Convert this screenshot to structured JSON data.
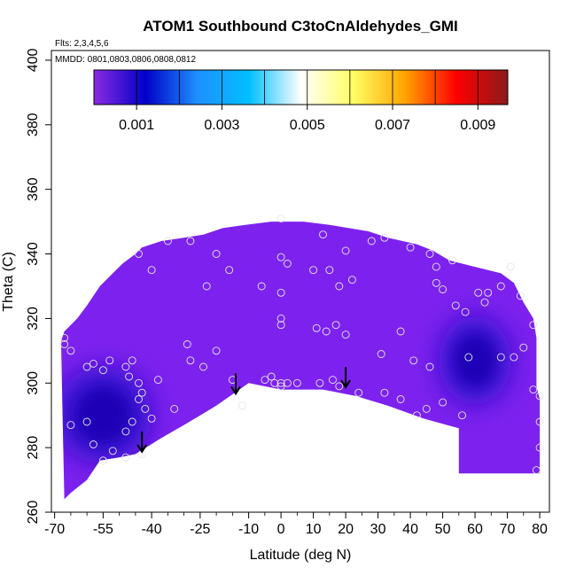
{
  "chart_data": {
    "type": "heatmap",
    "title": "ATOM1 Southbound C3toCnAldehydes_GMI",
    "flights_note": "Flts: 2,3,4,5,6",
    "dates_note": "MMDD: 0801,0803,0806,0808,0812",
    "xlabel": "Latitude (deg N)",
    "ylabel": "Theta (C)",
    "xlim": [
      -71,
      83
    ],
    "ylim": [
      260,
      403
    ],
    "x_ticks": [
      -70,
      -55,
      -40,
      -25,
      -10,
      0,
      10,
      20,
      30,
      40,
      50,
      60,
      70,
      80
    ],
    "x_tick_labels": [
      "-70",
      "-55",
      "-40",
      "-25",
      "-10",
      "0",
      "10",
      "20",
      "30",
      "40",
      "50",
      "60",
      "70",
      "80"
    ],
    "y_ticks": [
      260,
      280,
      300,
      320,
      340,
      360,
      380,
      400
    ],
    "y_tick_labels": [
      "260",
      "280",
      "300",
      "320",
      "340",
      "360",
      "380",
      "400"
    ],
    "colorbar": {
      "range": [
        0,
        0.0097
      ],
      "ticks": [
        0.001,
        0.003,
        0.005,
        0.007,
        0.009
      ],
      "tick_labels": [
        "0.001",
        "0.003",
        "0.005",
        "0.007",
        "0.009"
      ],
      "colors": [
        "#8a2be2",
        "#0000c8",
        "#1e90ff",
        "#00bfff",
        "#ffffff",
        "#ffff66",
        "#ffa500",
        "#ff0000",
        "#8b1a1a"
      ]
    },
    "field_color_background": "#7d22ee",
    "field_color_dark": "#2808c8",
    "field_color_darkest": "#1a00b4",
    "marker_color": "#e6e6e6",
    "arrow_color": "#000000",
    "domain_top": [
      [
        -68,
        313
      ],
      [
        -67,
        316
      ],
      [
        -63,
        320
      ],
      [
        -60,
        324
      ],
      [
        -56,
        330
      ],
      [
        -52,
        334
      ],
      [
        -49,
        337
      ],
      [
        -45,
        340
      ],
      [
        -43,
        342
      ],
      [
        -37,
        344
      ],
      [
        -30,
        345
      ],
      [
        -24,
        346
      ],
      [
        -18,
        348
      ],
      [
        -11,
        349
      ],
      [
        -3,
        350
      ],
      [
        7,
        350
      ],
      [
        15,
        349
      ],
      [
        21,
        348
      ],
      [
        27,
        347
      ],
      [
        33,
        345
      ],
      [
        42,
        343
      ],
      [
        47,
        341
      ],
      [
        52,
        338
      ],
      [
        60,
        336
      ],
      [
        68,
        334
      ],
      [
        72,
        331
      ],
      [
        75,
        325
      ],
      [
        78,
        320
      ],
      [
        79,
        314
      ],
      [
        79,
        306
      ],
      [
        79,
        299
      ],
      [
        80,
        295
      ],
      [
        80,
        280
      ],
      [
        80,
        272
      ]
    ],
    "domain_bottom": [
      [
        55,
        272
      ],
      [
        55,
        286
      ],
      [
        44,
        289
      ],
      [
        33,
        293
      ],
      [
        23,
        296
      ],
      [
        13,
        298
      ],
      [
        0,
        298
      ],
      [
        -10,
        300
      ],
      [
        -20,
        293
      ],
      [
        -25,
        290
      ],
      [
        -30,
        287
      ],
      [
        -37,
        283
      ],
      [
        -45,
        278
      ],
      [
        -50,
        277
      ],
      [
        -56,
        276
      ],
      [
        -60,
        270
      ],
      [
        -65,
        266
      ],
      [
        -67,
        264
      ]
    ],
    "dark_regions": [
      {
        "center": [
          -55,
          290
        ],
        "radius": [
          12,
          12
        ],
        "level": 0.0008
      },
      {
        "center": [
          60,
          307
        ],
        "radius": [
          9,
          11
        ],
        "level": 0.0006
      }
    ],
    "sample_points": [
      [
        -67,
        312
      ],
      [
        -67,
        314
      ],
      [
        -65,
        310
      ],
      [
        -60,
        305
      ],
      [
        -58,
        306
      ],
      [
        -55,
        304
      ],
      [
        -53,
        307
      ],
      [
        -48,
        305
      ],
      [
        -46,
        307
      ],
      [
        -47,
        302
      ],
      [
        -44,
        300
      ],
      [
        -43,
        297
      ],
      [
        -44,
        295
      ],
      [
        -42,
        292
      ],
      [
        -40,
        289
      ],
      [
        -38,
        301
      ],
      [
        -33,
        292
      ],
      [
        -28,
        307
      ],
      [
        -29,
        312
      ],
      [
        -24,
        305
      ],
      [
        -20,
        310
      ],
      [
        -15,
        301
      ],
      [
        -12,
        293
      ],
      [
        -65,
        287
      ],
      [
        -60,
        288
      ],
      [
        -58,
        281
      ],
      [
        -55,
        276
      ],
      [
        -52,
        279
      ],
      [
        -48,
        277
      ],
      [
        -43,
        278
      ],
      [
        -46,
        288
      ],
      [
        -48,
        285
      ],
      [
        -44,
        340
      ],
      [
        -40,
        335
      ],
      [
        -35,
        344
      ],
      [
        -28,
        344
      ],
      [
        -20,
        340
      ],
      [
        -16,
        335
      ],
      [
        -23,
        330
      ],
      [
        -6,
        330
      ],
      [
        -3,
        302
      ],
      [
        0,
        351
      ],
      [
        0,
        339
      ],
      [
        2,
        337
      ],
      [
        0,
        328
      ],
      [
        0,
        320
      ],
      [
        0,
        318
      ],
      [
        0,
        300
      ],
      [
        0,
        299
      ],
      [
        5,
        300
      ],
      [
        10,
        335
      ],
      [
        13,
        346
      ],
      [
        15,
        335
      ],
      [
        20,
        341
      ],
      [
        22,
        332
      ],
      [
        18,
        330
      ],
      [
        11,
        317
      ],
      [
        14,
        316
      ],
      [
        17,
        318
      ],
      [
        20,
        315
      ],
      [
        12,
        300
      ],
      [
        16,
        301
      ],
      [
        28,
        344
      ],
      [
        32,
        345
      ],
      [
        40,
        342
      ],
      [
        46,
        340
      ],
      [
        48,
        336
      ],
      [
        53,
        338
      ],
      [
        31,
        309
      ],
      [
        37,
        316
      ],
      [
        41,
        307
      ],
      [
        46,
        305
      ],
      [
        48,
        331
      ],
      [
        50,
        329
      ],
      [
        54,
        324
      ],
      [
        61,
        328
      ],
      [
        64,
        328
      ],
      [
        68,
        330
      ],
      [
        71,
        336
      ],
      [
        74,
        327
      ],
      [
        72,
        308
      ],
      [
        78,
        318
      ],
      [
        75,
        311
      ],
      [
        78,
        298
      ],
      [
        80,
        296
      ],
      [
        80,
        288
      ],
      [
        80,
        280
      ],
      [
        79,
        273
      ],
      [
        68,
        308
      ],
      [
        58,
        308
      ],
      [
        56,
        290
      ],
      [
        50,
        294
      ],
      [
        45,
        292
      ],
      [
        42,
        290
      ],
      [
        37,
        295
      ],
      [
        32,
        297
      ],
      [
        24,
        297
      ],
      [
        18,
        299
      ],
      [
        -5,
        301
      ],
      [
        -2,
        300
      ],
      [
        2,
        300
      ],
      [
        57,
        322
      ],
      [
        63,
        325
      ]
    ],
    "arrows": [
      [
        -43,
        285
      ],
      [
        -14,
        303
      ],
      [
        20,
        305
      ]
    ]
  }
}
